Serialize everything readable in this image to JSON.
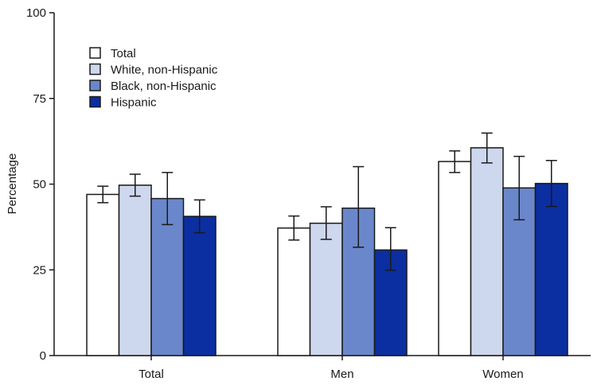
{
  "chart_data": {
    "type": "bar",
    "title": "",
    "xlabel": "",
    "ylabel": "Percentage",
    "ylim": [
      0,
      100
    ],
    "yticks": [
      0,
      25,
      50,
      75,
      100
    ],
    "grid": false,
    "legend_position": "top-left",
    "categories": [
      "Total",
      "Men",
      "Women"
    ],
    "series": [
      {
        "name": "Total",
        "color": "#ffffff",
        "values": [
          47.0,
          37.2,
          56.6
        ],
        "ci_low": [
          44.6,
          33.7,
          53.4
        ],
        "ci_high": [
          49.4,
          40.7,
          59.7
        ]
      },
      {
        "name": "White, non-Hispanic",
        "color": "#cdd7ee",
        "values": [
          49.7,
          38.6,
          60.6
        ],
        "ci_low": [
          46.5,
          33.9,
          56.2
        ],
        "ci_high": [
          52.9,
          43.4,
          64.9
        ]
      },
      {
        "name": "Black, non-Hispanic",
        "color": "#6a87cb",
        "values": [
          45.8,
          43.0,
          48.9
        ],
        "ci_low": [
          38.2,
          31.6,
          39.6
        ],
        "ci_high": [
          53.4,
          55.1,
          58.1
        ]
      },
      {
        "name": "Hispanic",
        "color": "#0b2ea1",
        "values": [
          40.6,
          30.8,
          50.2
        ],
        "ci_low": [
          35.8,
          24.9,
          43.5
        ],
        "ci_high": [
          45.4,
          37.3,
          56.9
        ]
      }
    ]
  }
}
